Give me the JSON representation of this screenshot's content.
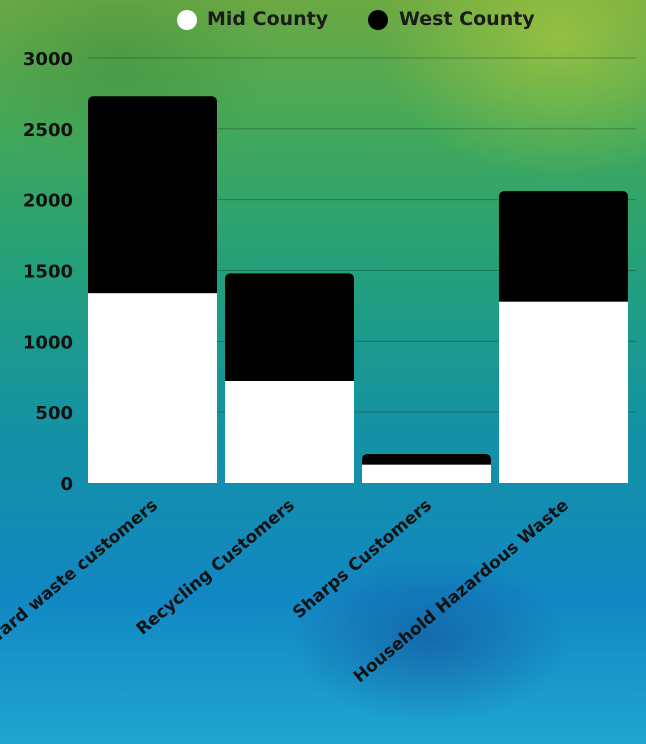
{
  "chart_data": {
    "type": "bar",
    "stacked": true,
    "categories": [
      "Yard waste customers",
      "Recycling Customers",
      "Sharps Customers",
      "Household Hazardous Waste"
    ],
    "series": [
      {
        "name": "Mid County",
        "color": "#ffffff",
        "values": [
          1340,
          720,
          130,
          1280
        ]
      },
      {
        "name": "West County",
        "color": "#000000",
        "values": [
          1390,
          760,
          75,
          780
        ]
      }
    ],
    "ylim": [
      0,
      3000
    ],
    "yticks": [
      0,
      500,
      1000,
      1500,
      2000,
      2500,
      3000
    ],
    "grid": true,
    "legend_position": "top-right"
  }
}
